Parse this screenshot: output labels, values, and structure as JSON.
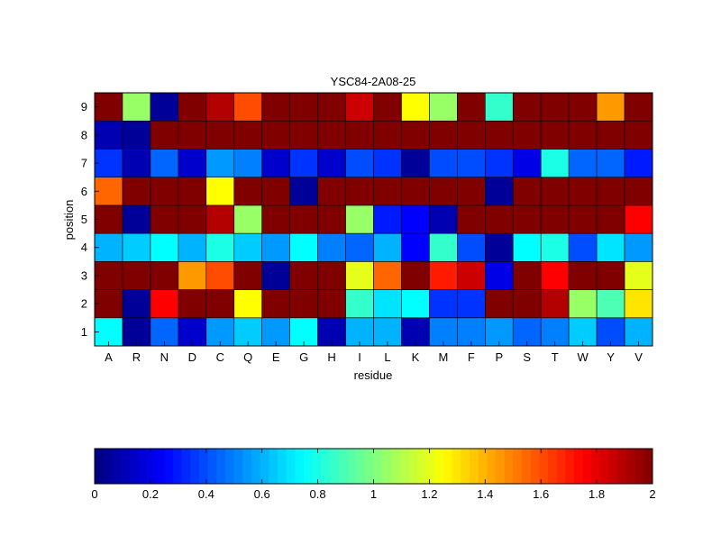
{
  "chart_data": {
    "type": "heatmap",
    "title": "YSC84-2A08-25",
    "xlabel": "residue",
    "ylabel": "position",
    "x_categories": [
      "A",
      "R",
      "N",
      "D",
      "C",
      "Q",
      "E",
      "G",
      "H",
      "I",
      "L",
      "K",
      "M",
      "F",
      "P",
      "S",
      "T",
      "W",
      "Y",
      "V"
    ],
    "y_categories": [
      "1",
      "2",
      "3",
      "4",
      "5",
      "6",
      "7",
      "8",
      "9"
    ],
    "values": [
      [
        0.75,
        0.05,
        0.45,
        0.15,
        0.55,
        0.65,
        0.55,
        0.75,
        0.1,
        0.6,
        0.6,
        0.1,
        0.5,
        0.5,
        0.55,
        0.45,
        0.5,
        0.65,
        0.4,
        0.6
      ],
      [
        2.0,
        0.05,
        1.75,
        2.0,
        2.0,
        1.25,
        2.0,
        2.0,
        2.0,
        0.85,
        0.7,
        0.75,
        0.35,
        0.35,
        2.0,
        2.0,
        1.9,
        1.05,
        0.9,
        1.3
      ],
      [
        2.0,
        2.0,
        2.0,
        1.45,
        1.6,
        2.0,
        0.05,
        2.0,
        2.0,
        1.2,
        1.55,
        2.0,
        1.7,
        1.85,
        0.2,
        2.0,
        1.75,
        2.0,
        2.0,
        1.2
      ],
      [
        0.6,
        0.65,
        0.75,
        0.6,
        0.8,
        0.65,
        0.55,
        0.75,
        0.5,
        0.45,
        0.6,
        0.25,
        0.85,
        0.4,
        0.05,
        0.75,
        0.8,
        0.4,
        0.7,
        0.55
      ],
      [
        2.0,
        0.05,
        2.0,
        2.0,
        1.9,
        1.05,
        2.0,
        2.0,
        2.0,
        1.05,
        0.3,
        0.25,
        0.1,
        2.0,
        2.0,
        2.0,
        2.0,
        2.0,
        2.0,
        1.75
      ],
      [
        1.55,
        2.0,
        2.0,
        2.0,
        1.25,
        2.0,
        2.0,
        0.05,
        2.0,
        2.0,
        2.0,
        2.0,
        2.0,
        2.0,
        0.05,
        2.0,
        2.0,
        2.0,
        2.0,
        2.0
      ],
      [
        0.35,
        0.1,
        0.45,
        0.15,
        0.55,
        0.5,
        0.15,
        0.35,
        0.15,
        0.4,
        0.35,
        0.05,
        0.4,
        0.4,
        0.35,
        0.2,
        0.8,
        0.45,
        0.45,
        0.3
      ],
      [
        0.1,
        0.05,
        2.0,
        2.0,
        2.0,
        2.0,
        2.0,
        2.0,
        2.0,
        2.0,
        2.0,
        2.0,
        2.0,
        2.0,
        2.0,
        2.0,
        2.0,
        2.0,
        2.0,
        2.0
      ],
      [
        2.0,
        1.05,
        0.05,
        2.0,
        1.9,
        1.6,
        2.0,
        2.0,
        2.0,
        1.85,
        2.0,
        1.25,
        1.05,
        2.0,
        0.85,
        2.0,
        2.0,
        2.0,
        1.45,
        2.0
      ]
    ],
    "colorbar": {
      "colormap": "jet",
      "min": 0,
      "max": 2,
      "tick_labels": [
        "0",
        "0.2",
        "0.4",
        "0.6",
        "0.8",
        "1",
        "1.2",
        "1.4",
        "1.6",
        "1.8",
        "2"
      ],
      "orientation": "horizontal"
    },
    "grid": false
  }
}
